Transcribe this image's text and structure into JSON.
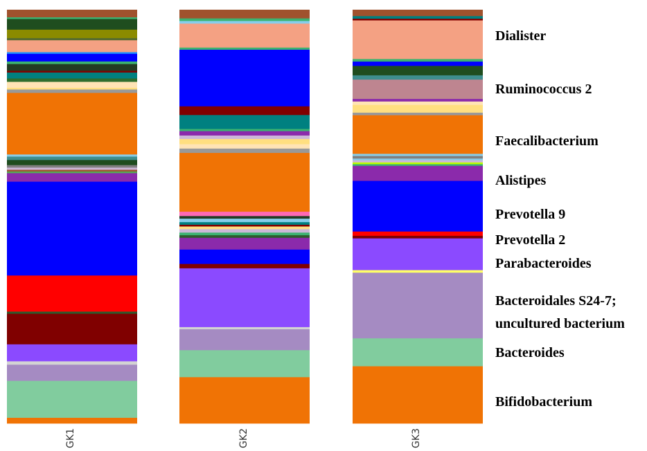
{
  "chart_data": {
    "type": "bar",
    "stacked": true,
    "value_scale": "relative abundance (0-1)",
    "categories": [
      "GK1",
      "GK2",
      "GK3"
    ],
    "segments": [
      [
        {
          "color": "#A0522D",
          "value": 0.018
        },
        {
          "color": "#3CB371",
          "value": 0.004
        },
        {
          "color": "#1F4D1F",
          "value": 0.025
        },
        {
          "color": "#8B8B00",
          "value": 0.02
        },
        {
          "color": "#556B2F",
          "value": 0.005
        },
        {
          "color": "#F4A183",
          "value": 0.028
        },
        {
          "color": "#1E90FF",
          "value": 0.004
        },
        {
          "color": "#0000FF",
          "value": 0.018
        },
        {
          "color": "#3CB371",
          "value": 0.006
        },
        {
          "color": "#233B23",
          "value": 0.016
        },
        {
          "color": "#800000",
          "value": 0.004
        },
        {
          "color": "#008080",
          "value": 0.014
        },
        {
          "color": "#2E6E2E",
          "value": 0.008
        },
        {
          "color": "#FFE4B5",
          "value": 0.014
        },
        {
          "color": "#FFDF80",
          "value": 0.004
        },
        {
          "color": "#999999",
          "value": 0.008
        },
        {
          "color": "#F07305",
          "value": 0.145
        },
        {
          "color": "#87CEEB",
          "value": 0.005
        },
        {
          "color": "#3E8E8E",
          "value": 0.008
        },
        {
          "color": "#1F4D1F",
          "value": 0.012
        },
        {
          "color": "#808080",
          "value": 0.006
        },
        {
          "color": "#CCB8D8",
          "value": 0.005
        },
        {
          "color": "#A0522D",
          "value": 0.004
        },
        {
          "color": "#55AA55",
          "value": 0.004
        },
        {
          "color": "#8B2AAB",
          "value": 0.02
        },
        {
          "color": "#0000FF",
          "value": 0.221
        },
        {
          "color": "#FF0000",
          "value": 0.085
        },
        {
          "color": "#2D5A2D",
          "value": 0.005
        },
        {
          "color": "#800000",
          "value": 0.072
        },
        {
          "color": "#8B4AFF",
          "value": 0.04
        },
        {
          "color": "#D3D3D3",
          "value": 0.008
        },
        {
          "color": "#A58BC2",
          "value": 0.038
        },
        {
          "color": "#81CC9E",
          "value": 0.087
        },
        {
          "color": "#F07305",
          "value": 0.013
        }
      ],
      [
        {
          "color": "#A0522D",
          "value": 0.02
        },
        {
          "color": "#3CB371",
          "value": 0.006
        },
        {
          "color": "#87CEEB",
          "value": 0.006
        },
        {
          "color": "#F4A183",
          "value": 0.055
        },
        {
          "color": "#3CB371",
          "value": 0.005
        },
        {
          "color": "#0000FF",
          "value": 0.13
        },
        {
          "color": "#800000",
          "value": 0.02
        },
        {
          "color": "#008080",
          "value": 0.032
        },
        {
          "color": "#3CB371",
          "value": 0.005
        },
        {
          "color": "#8B2AAB",
          "value": 0.01
        },
        {
          "color": "#CCB8D8",
          "value": 0.008
        },
        {
          "color": "#FFDF80",
          "value": 0.012
        },
        {
          "color": "#FFE4B5",
          "value": 0.01
        },
        {
          "color": "#999999",
          "value": 0.01
        },
        {
          "color": "#F07305",
          "value": 0.135
        },
        {
          "color": "#FF69B4",
          "value": 0.01
        },
        {
          "color": "#233B23",
          "value": 0.006
        },
        {
          "color": "#87CEEB",
          "value": 0.008
        },
        {
          "color": "#008080",
          "value": 0.006
        },
        {
          "color": "#800000",
          "value": 0.004
        },
        {
          "color": "#FFDF80",
          "value": 0.006
        },
        {
          "color": "#CCB8D8",
          "value": 0.008
        },
        {
          "color": "#3CB371",
          "value": 0.006
        },
        {
          "color": "#2D5A2D",
          "value": 0.006
        },
        {
          "color": "#8B2AAB",
          "value": 0.027
        },
        {
          "color": "#0000FF",
          "value": 0.033
        },
        {
          "color": "#800000",
          "value": 0.01
        },
        {
          "color": "#8B4AFF",
          "value": 0.135
        },
        {
          "color": "#D3D3D3",
          "value": 0.005
        },
        {
          "color": "#A58BC2",
          "value": 0.048
        },
        {
          "color": "#81CC9E",
          "value": 0.062
        },
        {
          "color": "#F07305",
          "value": 0.106
        }
      ],
      [
        {
          "color": "#A0522D",
          "value": 0.015
        },
        {
          "color": "#008080",
          "value": 0.006
        },
        {
          "color": "#800000",
          "value": 0.004
        },
        {
          "color": "#F4A183",
          "value": 0.09
        },
        {
          "color": "#3CB371",
          "value": 0.006
        },
        {
          "color": "#0000FF",
          "value": 0.01
        },
        {
          "color": "#1F4D1F",
          "value": 0.022
        },
        {
          "color": "#3E8E8E",
          "value": 0.01
        },
        {
          "color": "#BE8590",
          "value": 0.045
        },
        {
          "color": "#8B2AAB",
          "value": 0.006
        },
        {
          "color": "#FFE4B5",
          "value": 0.008
        },
        {
          "color": "#FFDF80",
          "value": 0.018
        },
        {
          "color": "#999999",
          "value": 0.006
        },
        {
          "color": "#F07305",
          "value": 0.09
        },
        {
          "color": "#87CEEB",
          "value": 0.005
        },
        {
          "color": "#808080",
          "value": 0.006
        },
        {
          "color": "#87CEEB",
          "value": 0.004
        },
        {
          "color": "#CCB8D8",
          "value": 0.005
        },
        {
          "color": "#C0FF00",
          "value": 0.004
        },
        {
          "color": "#3CB371",
          "value": 0.004
        },
        {
          "color": "#8B2AAB",
          "value": 0.035
        },
        {
          "color": "#0000FF",
          "value": 0.118
        },
        {
          "color": "#FF0000",
          "value": 0.01
        },
        {
          "color": "#800000",
          "value": 0.006
        },
        {
          "color": "#8B4AFF",
          "value": 0.074
        },
        {
          "color": "#FFFF66",
          "value": 0.006
        },
        {
          "color": "#A58BC2",
          "value": 0.153
        },
        {
          "color": "#81CC9E",
          "value": 0.065
        },
        {
          "color": "#F07305",
          "value": 0.133
        }
      ]
    ],
    "legend": [
      "Dialister",
      "Ruminococcus 2",
      "Faecalibacterium",
      "Alistipes",
      "Prevotella 9",
      "Prevotella 2",
      "Parabacteroides",
      "Bacteroidales S24-7;",
      "uncultured bacterium",
      "Bacteroides",
      "Bifidobacterium"
    ],
    "legend_placement": "right",
    "grid": false
  }
}
